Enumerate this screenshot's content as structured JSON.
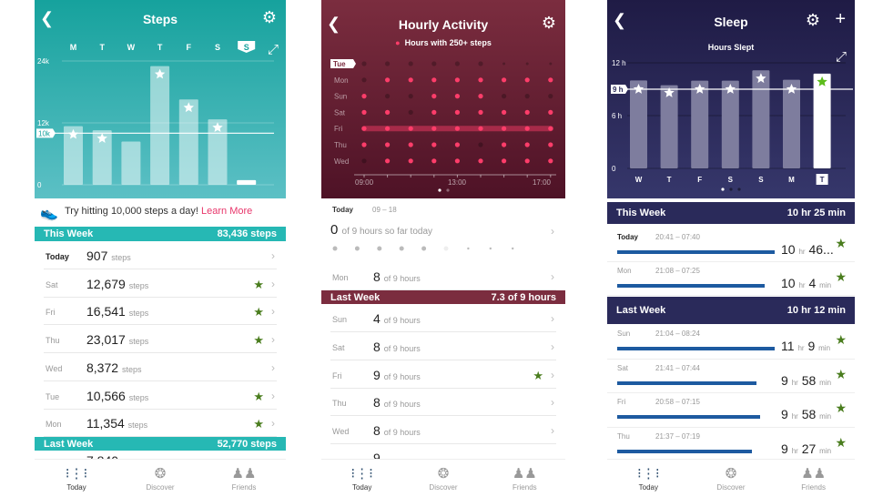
{
  "steps": {
    "title": "Steps",
    "today_badge": "S",
    "y_ticks": [
      "24k",
      "12k",
      "0"
    ],
    "goal_label": "10k",
    "tip": "Try hitting 10,000 steps a day!",
    "tip_link": "Learn More",
    "this_week": {
      "label": "This Week",
      "total": "83,436 steps"
    },
    "rows": [
      {
        "day": "Today",
        "value": "907",
        "unit": "steps",
        "star": false
      },
      {
        "day": "Sat",
        "value": "12,679",
        "unit": "steps",
        "star": true
      },
      {
        "day": "Fri",
        "value": "16,541",
        "unit": "steps",
        "star": true
      },
      {
        "day": "Thu",
        "value": "23,017",
        "unit": "steps",
        "star": true
      },
      {
        "day": "Wed",
        "value": "8,372",
        "unit": "steps",
        "star": false
      },
      {
        "day": "Tue",
        "value": "10,566",
        "unit": "steps",
        "star": true
      },
      {
        "day": "Mon",
        "value": "11,354",
        "unit": "steps",
        "star": true
      }
    ],
    "last_week": {
      "label": "Last Week",
      "total": "52,770 steps"
    },
    "partial_value": "7,840"
  },
  "hourly": {
    "title": "Hourly Activity",
    "legend": "Hours with 250+ steps",
    "today_label": "Today",
    "today_range": "09 – 18",
    "today_value": "0",
    "today_text": "of 9 hours so far today",
    "mon": {
      "day": "Mon",
      "value": "8",
      "unit": "of 9 hours"
    },
    "last_week": {
      "label": "Last Week",
      "total": "7.3 of 9 hours"
    },
    "rows": [
      {
        "day": "Sun",
        "value": "4",
        "unit": "of 9 hours",
        "star": false
      },
      {
        "day": "Sat",
        "value": "8",
        "unit": "of 9 hours",
        "star": false
      },
      {
        "day": "Fri",
        "value": "9",
        "unit": "of 9 hours",
        "star": true
      },
      {
        "day": "Thu",
        "value": "8",
        "unit": "of 9 hours",
        "star": false
      },
      {
        "day": "Wed",
        "value": "8",
        "unit": "of 9 hours",
        "star": false
      }
    ],
    "partial_value": "9"
  },
  "sleep": {
    "title": "Sleep",
    "this_week": {
      "label": "This Week",
      "total": "10 hr 25 min"
    },
    "last_week": {
      "label": "Last Week",
      "total": "10 hr 12 min"
    },
    "this_rows": [
      {
        "day": "Today",
        "range": "20:41 – 07:40",
        "h": "10",
        "m": "46...",
        "mu": ""
      },
      {
        "day": "Mon",
        "range": "21:08 – 07:25",
        "h": "10",
        "m": "4",
        "mu": "min"
      }
    ],
    "last_rows": [
      {
        "day": "Sun",
        "range": "21:04 – 08:24",
        "h": "11",
        "m": "9",
        "mu": "min"
      },
      {
        "day": "Sat",
        "range": "21:41 – 07:44",
        "h": "9",
        "m": "58",
        "mu": "min"
      },
      {
        "day": "Fri",
        "range": "20:58 – 07:15",
        "h": "9",
        "m": "58",
        "mu": "min"
      },
      {
        "day": "Thu",
        "range": "21:37 – 07:19",
        "h": "9",
        "m": "27",
        "mu": "min"
      }
    ],
    "hr_unit": "hr"
  },
  "nav": {
    "today": "Today",
    "discover": "Discover",
    "friends": "Friends"
  },
  "colors": {
    "steps": "#1fb5b0",
    "hourly": "#7b2d3f",
    "sleep": "#2a2a5a",
    "star": "#4a7d1e",
    "active_dot": "#ff3d6a",
    "link": "#e8366b"
  },
  "chart_data": [
    {
      "type": "bar",
      "title": "Steps",
      "categories": [
        "M",
        "T",
        "W",
        "T",
        "F",
        "S",
        "S"
      ],
      "values": [
        11354,
        10566,
        8372,
        23017,
        16541,
        12679,
        907
      ],
      "goal": 10000,
      "ylim": [
        0,
        24000
      ],
      "y_ticks": [
        "24k",
        "12k",
        "0"
      ],
      "stars": [
        true,
        true,
        false,
        true,
        true,
        true,
        false
      ]
    },
    {
      "type": "heatmap",
      "title": "Hourly Activity",
      "legend": "Hours with 250+ steps",
      "rows": [
        "Tue",
        "Mon",
        "Sun",
        "Sat",
        "Fri",
        "Thu",
        "Wed"
      ],
      "x_ticks": [
        "09:00",
        "13:00",
        "17:00"
      ],
      "active": [
        [
          0,
          0,
          0,
          0,
          0,
          0,
          0,
          0,
          0
        ],
        [
          0,
          1,
          1,
          1,
          1,
          1,
          1,
          1,
          1
        ],
        [
          1,
          0,
          0,
          1,
          1,
          1,
          0,
          0,
          0
        ],
        [
          1,
          1,
          0,
          1,
          1,
          1,
          1,
          1,
          1
        ],
        [
          1,
          1,
          1,
          1,
          1,
          1,
          1,
          1,
          1
        ],
        [
          1,
          1,
          1,
          1,
          1,
          0,
          1,
          1,
          1
        ],
        [
          0,
          1,
          1,
          1,
          1,
          1,
          1,
          1,
          1
        ]
      ],
      "highlight_row": "Fri"
    },
    {
      "type": "bar",
      "title": "Hours Slept",
      "categories": [
        "W",
        "T",
        "F",
        "S",
        "S",
        "M",
        "T"
      ],
      "values": [
        10.0,
        9.45,
        9.97,
        9.97,
        11.15,
        10.07,
        10.77
      ],
      "goal": 9,
      "goal_label": "9 h",
      "ylim": [
        0,
        12
      ],
      "y_ticks": [
        "12 h",
        "6 h",
        "0"
      ]
    }
  ]
}
